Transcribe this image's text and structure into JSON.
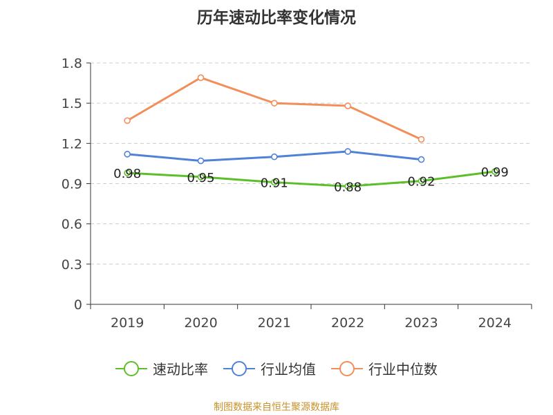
{
  "chart_data": {
    "type": "line",
    "title": "历年速动比率变化情况",
    "categories": [
      "2019",
      "2020",
      "2021",
      "2022",
      "2023",
      "2024"
    ],
    "ylim": [
      0,
      1.8
    ],
    "yticks": [
      "0",
      "0.3",
      "0.6",
      "0.9",
      "1.2",
      "1.5",
      "1.8"
    ],
    "grid": true,
    "legend_position": "bottom",
    "series": [
      {
        "name": "速动比率",
        "color": "#5cbf2a",
        "values": [
          0.98,
          0.95,
          0.91,
          0.88,
          0.92,
          0.99
        ],
        "labels": [
          "0.98",
          "0.95",
          "0.91",
          "0.88",
          "0.92",
          "0.99"
        ]
      },
      {
        "name": "行业均值",
        "color": "#4f81d8",
        "values": [
          1.12,
          1.07,
          1.1,
          1.14,
          1.08,
          null
        ]
      },
      {
        "name": "行业中位数",
        "color": "#f28e5a",
        "values": [
          1.37,
          1.69,
          1.5,
          1.48,
          1.23,
          null
        ]
      }
    ]
  },
  "source_text": "制图数据来自恒生聚源数据库"
}
